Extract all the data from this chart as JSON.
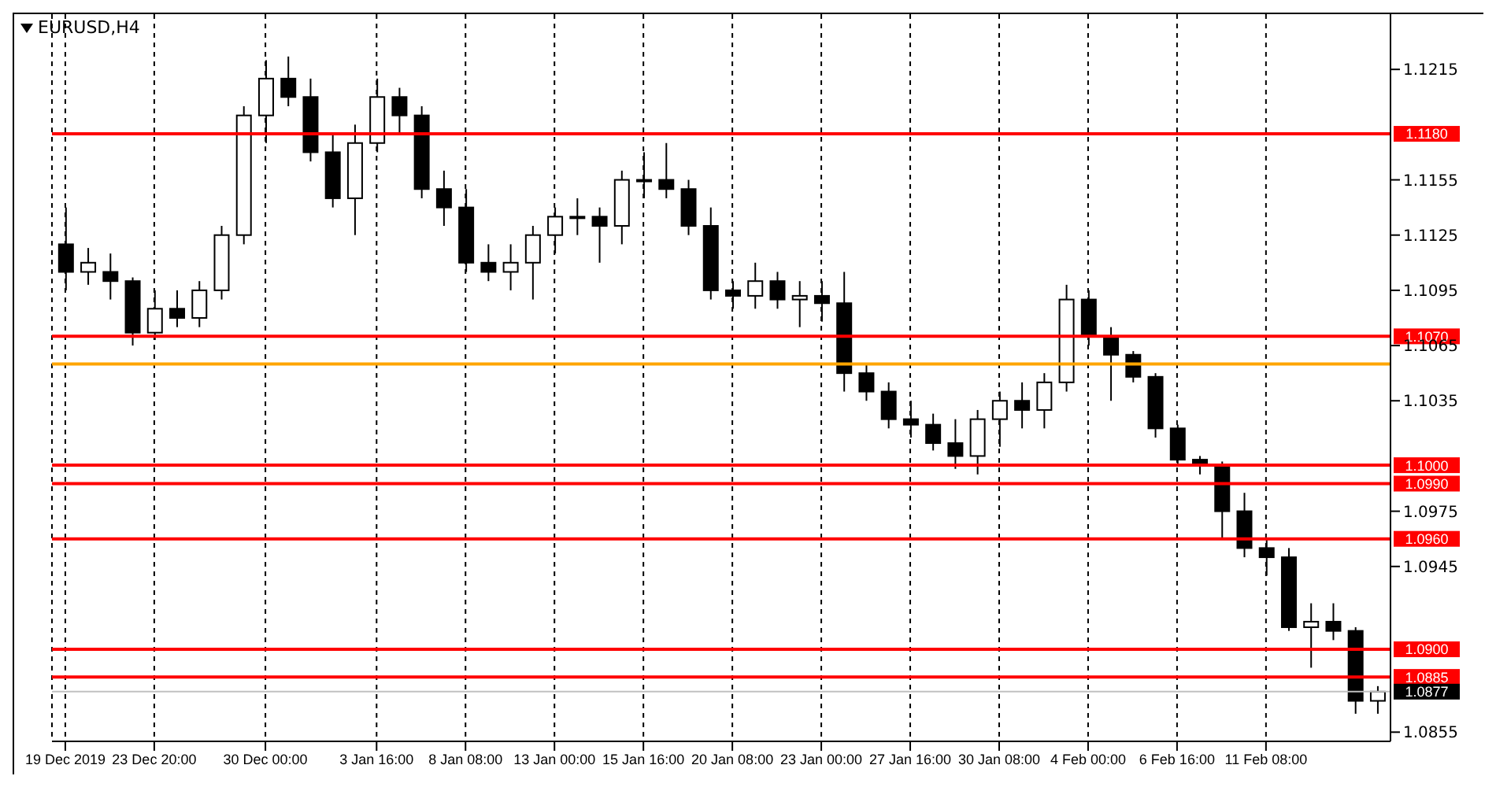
{
  "chart_data": {
    "type": "candlestick",
    "title": "EURUSD,H4",
    "categories": [
      "19 Dec 2019",
      null,
      null,
      null,
      "23 Dec 20:00",
      null,
      null,
      null,
      null,
      "30 Dec 00:00",
      null,
      null,
      null,
      null,
      "3 Jan 16:00",
      null,
      null,
      null,
      "8 Jan 08:00",
      null,
      null,
      null,
      "13 Jan 00:00",
      null,
      null,
      null,
      "15 Jan 16:00",
      null,
      null,
      null,
      "20 Jan 08:00",
      null,
      null,
      null,
      "23 Jan 00:00",
      null,
      null,
      null,
      "27 Jan 16:00",
      null,
      null,
      null,
      "30 Jan 08:00",
      null,
      null,
      null,
      "4 Feb 00:00",
      null,
      null,
      null,
      "6 Feb 16:00",
      null,
      null,
      null,
      "11 Feb 08:00",
      null,
      null,
      null,
      null,
      null
    ],
    "ohlc": [
      [
        1.112,
        1.114,
        1.1095,
        1.1105
      ],
      [
        1.1105,
        1.1118,
        1.1098,
        1.111
      ],
      [
        1.1105,
        1.1115,
        1.109,
        1.11
      ],
      [
        1.11,
        1.1102,
        1.1065,
        1.1072
      ],
      [
        1.1072,
        1.1095,
        1.1068,
        1.1085
      ],
      [
        1.1085,
        1.1095,
        1.1075,
        1.108
      ],
      [
        1.108,
        1.11,
        1.1075,
        1.1095
      ],
      [
        1.1095,
        1.113,
        1.109,
        1.1125
      ],
      [
        1.1125,
        1.1195,
        1.112,
        1.119
      ],
      [
        1.119,
        1.122,
        1.1175,
        1.121
      ],
      [
        1.121,
        1.1222,
        1.1195,
        1.12
      ],
      [
        1.12,
        1.121,
        1.1165,
        1.117
      ],
      [
        1.117,
        1.118,
        1.114,
        1.1145
      ],
      [
        1.1145,
        1.1185,
        1.1125,
        1.1175
      ],
      [
        1.1175,
        1.121,
        1.117,
        1.12
      ],
      [
        1.12,
        1.1205,
        1.118,
        1.119
      ],
      [
        1.119,
        1.1195,
        1.1145,
        1.115
      ],
      [
        1.115,
        1.116,
        1.113,
        1.114
      ],
      [
        1.114,
        1.115,
        1.1105,
        1.111
      ],
      [
        1.111,
        1.112,
        1.11,
        1.1105
      ],
      [
        1.1105,
        1.112,
        1.1095,
        1.111
      ],
      [
        1.111,
        1.113,
        1.109,
        1.1125
      ],
      [
        1.1125,
        1.114,
        1.1115,
        1.1135
      ],
      [
        1.1135,
        1.1145,
        1.1125,
        1.1135
      ],
      [
        1.1135,
        1.114,
        1.111,
        1.113
      ],
      [
        1.113,
        1.116,
        1.112,
        1.1155
      ],
      [
        1.1155,
        1.117,
        1.1145,
        1.1155
      ],
      [
        1.1155,
        1.1175,
        1.1145,
        1.115
      ],
      [
        1.115,
        1.1155,
        1.1125,
        1.113
      ],
      [
        1.113,
        1.114,
        1.109,
        1.1095
      ],
      [
        1.1095,
        1.11,
        1.1085,
        1.1092
      ],
      [
        1.1092,
        1.111,
        1.1085,
        1.11
      ],
      [
        1.11,
        1.1105,
        1.1085,
        1.109
      ],
      [
        1.109,
        1.11,
        1.1075,
        1.1092
      ],
      [
        1.1092,
        1.11,
        1.1078,
        1.1088
      ],
      [
        1.1088,
        1.1105,
        1.104,
        1.105
      ],
      [
        1.105,
        1.1055,
        1.1035,
        1.104
      ],
      [
        1.104,
        1.1045,
        1.102,
        1.1025
      ],
      [
        1.1025,
        1.1035,
        1.1015,
        1.1022
      ],
      [
        1.1022,
        1.1028,
        1.1008,
        1.1012
      ],
      [
        1.1012,
        1.1025,
        1.0998,
        1.1005
      ],
      [
        1.1005,
        1.103,
        1.0995,
        1.1025
      ],
      [
        1.1025,
        1.104,
        1.101,
        1.1035
      ],
      [
        1.1035,
        1.1045,
        1.102,
        1.103
      ],
      [
        1.103,
        1.105,
        1.102,
        1.1045
      ],
      [
        1.1045,
        1.1098,
        1.104,
        1.109
      ],
      [
        1.109,
        1.1095,
        1.1065,
        1.107
      ],
      [
        1.107,
        1.1075,
        1.1035,
        1.106
      ],
      [
        1.106,
        1.1062,
        1.1045,
        1.1048
      ],
      [
        1.1048,
        1.105,
        1.1015,
        1.102
      ],
      [
        1.102,
        1.1022,
        1.1,
        1.1003
      ],
      [
        1.1003,
        1.1005,
        1.0995,
        1.1
      ],
      [
        1.1,
        1.1002,
        1.096,
        1.0975
      ],
      [
        1.0975,
        1.0985,
        1.095,
        1.0955
      ],
      [
        1.0955,
        1.096,
        1.094,
        1.095
      ],
      [
        1.095,
        1.0955,
        1.091,
        1.0912
      ],
      [
        1.0912,
        1.0925,
        1.089,
        1.0915
      ],
      [
        1.0915,
        1.0925,
        1.0905,
        1.091
      ],
      [
        1.091,
        1.0912,
        1.0865,
        1.0872
      ],
      [
        1.0872,
        1.088,
        1.0865,
        1.0877
      ]
    ],
    "ylim": [
      1.085,
      1.1245
    ],
    "yticks": [
      1.1215,
      1.1155,
      1.1125,
      1.1095,
      1.1065,
      1.1035,
      1.0975,
      1.0945,
      1.0855
    ],
    "grid": "x",
    "ref_lines": [
      {
        "axis": "y",
        "value": 1.118,
        "label": "1.1180",
        "color": "#ff0000"
      },
      {
        "axis": "y",
        "value": 1.107,
        "label": "1.1070",
        "color": "#ff0000"
      },
      {
        "axis": "y",
        "value": 1.1055,
        "color": "#ffa500"
      },
      {
        "axis": "y",
        "value": 1.1,
        "label": "1.1000",
        "color": "#ff0000"
      },
      {
        "axis": "y",
        "value": 1.099,
        "label": "1.0990",
        "color": "#ff0000"
      },
      {
        "axis": "y",
        "value": 1.096,
        "label": "1.0960",
        "color": "#ff0000"
      },
      {
        "axis": "y",
        "value": 1.09,
        "label": "1.0900",
        "color": "#ff0000"
      },
      {
        "axis": "y",
        "value": 1.0885,
        "label": "1.0885",
        "color": "#ff0000"
      },
      {
        "axis": "y",
        "value": 1.0877,
        "label": "1.0877",
        "color": "#c0c0c0"
      }
    ]
  }
}
